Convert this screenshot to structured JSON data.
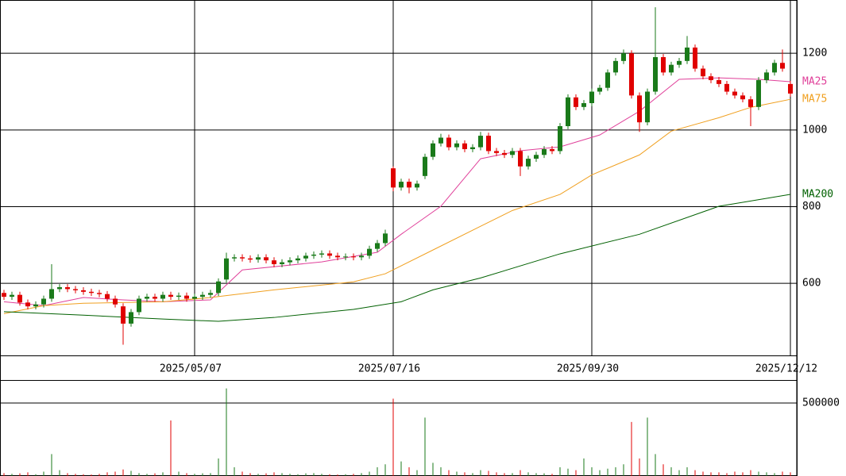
{
  "chart_data": [
    {
      "type": "candlestick",
      "categories": [
        null,
        null,
        null,
        null,
        null,
        null,
        null,
        null,
        null,
        null,
        null,
        null,
        null,
        null,
        null,
        null,
        null,
        null,
        null,
        null,
        null,
        null,
        null,
        null,
        "2025/05/07",
        null,
        null,
        null,
        null,
        null,
        null,
        null,
        null,
        null,
        null,
        null,
        null,
        null,
        null,
        null,
        null,
        null,
        null,
        null,
        null,
        null,
        null,
        null,
        null,
        "2025/07/16",
        null,
        null,
        null,
        null,
        null,
        null,
        null,
        null,
        null,
        null,
        null,
        null,
        null,
        null,
        null,
        null,
        null,
        null,
        null,
        null,
        null,
        null,
        null,
        null,
        "2025/09/30",
        null,
        null,
        null,
        null,
        null,
        null,
        null,
        null,
        null,
        null,
        null,
        null,
        null,
        null,
        null,
        null,
        null,
        null,
        null,
        null,
        null,
        null,
        null,
        null,
        "2025/12/12"
      ],
      "open": [
        575,
        565,
        570,
        550,
        540,
        545,
        560,
        585,
        590,
        585,
        582,
        578,
        575,
        572,
        560,
        540,
        495,
        525,
        560,
        565,
        560,
        570,
        565,
        568,
        560,
        565,
        570,
        575,
        610,
        665,
        668,
        665,
        662,
        668,
        660,
        650,
        655,
        660,
        665,
        672,
        675,
        678,
        672,
        668,
        670,
        668,
        672,
        690,
        705,
        900,
        850,
        865,
        850,
        880,
        930,
        965,
        980,
        955,
        965,
        950,
        955,
        985,
        945,
        940,
        935,
        945,
        905,
        925,
        935,
        950,
        945,
        1010,
        1085,
        1060,
        1070,
        1100,
        1110,
        1150,
        1180,
        1200,
        1090,
        1020,
        1100,
        1190,
        1150,
        1170,
        1180,
        1215,
        1160,
        1140,
        1130,
        1120,
        1100,
        1090,
        1080,
        1060,
        1130,
        1150,
        1175,
        1120
      ],
      "high": [
        583,
        578,
        578,
        558,
        553,
        568,
        650,
        598,
        598,
        593,
        590,
        586,
        583,
        580,
        568,
        548,
        533,
        568,
        573,
        573,
        578,
        578,
        576,
        576,
        573,
        578,
        583,
        613,
        680,
        676,
        676,
        673,
        676,
        676,
        668,
        663,
        668,
        673,
        680,
        683,
        686,
        686,
        680,
        678,
        678,
        680,
        698,
        713,
        740,
        905,
        873,
        873,
        868,
        938,
        973,
        990,
        988,
        973,
        973,
        963,
        995,
        993,
        953,
        948,
        953,
        953,
        933,
        943,
        958,
        958,
        1018,
        1093,
        1093,
        1078,
        1108,
        1118,
        1158,
        1188,
        1210,
        1208,
        1098,
        1108,
        1320,
        1198,
        1178,
        1188,
        1245,
        1223,
        1168,
        1148,
        1138,
        1128,
        1108,
        1098,
        1088,
        1138,
        1158,
        1183,
        1210,
        1128
      ],
      "low": [
        557,
        557,
        542,
        532,
        532,
        537,
        552,
        577,
        577,
        574,
        570,
        567,
        564,
        552,
        537,
        440,
        487,
        517,
        552,
        552,
        552,
        557,
        557,
        552,
        552,
        557,
        562,
        567,
        602,
        657,
        657,
        654,
        654,
        652,
        642,
        642,
        647,
        652,
        657,
        664,
        667,
        664,
        660,
        660,
        660,
        660,
        664,
        682,
        697,
        840,
        842,
        835,
        842,
        872,
        922,
        957,
        947,
        947,
        942,
        942,
        947,
        937,
        932,
        927,
        927,
        880,
        897,
        917,
        927,
        937,
        937,
        1002,
        1052,
        1052,
        1062,
        1092,
        1102,
        1142,
        1172,
        1082,
        995,
        1012,
        1092,
        1142,
        1142,
        1162,
        1172,
        1152,
        1132,
        1122,
        1112,
        1092,
        1082,
        1072,
        1010,
        1052,
        1122,
        1142,
        1152,
        1087
      ],
      "close": [
        565,
        570,
        550,
        540,
        545,
        560,
        585,
        590,
        585,
        582,
        578,
        575,
        572,
        560,
        545,
        495,
        525,
        560,
        565,
        560,
        570,
        565,
        568,
        560,
        565,
        570,
        575,
        605,
        665,
        668,
        665,
        662,
        668,
        660,
        650,
        655,
        660,
        665,
        672,
        675,
        678,
        672,
        668,
        670,
        668,
        672,
        690,
        705,
        730,
        850,
        865,
        850,
        860,
        930,
        965,
        980,
        955,
        965,
        950,
        955,
        985,
        945,
        940,
        935,
        945,
        905,
        925,
        935,
        950,
        945,
        1010,
        1085,
        1060,
        1070,
        1100,
        1110,
        1150,
        1180,
        1200,
        1090,
        1020,
        1100,
        1190,
        1150,
        1170,
        1180,
        1215,
        1160,
        1140,
        1130,
        1120,
        1100,
        1090,
        1080,
        1060,
        1130,
        1150,
        1175,
        1160,
        1095
      ],
      "up_color": "#1a7a1a",
      "down_color": "#e00000",
      "series": [
        {
          "name": "MA25",
          "color": "#e0409a",
          "x": [
            0,
            5,
            10,
            15,
            20,
            26,
            30,
            40,
            47,
            50,
            55,
            60,
            65,
            70,
            75,
            80,
            85,
            90,
            95,
            99
          ],
          "values": [
            552,
            542,
            563,
            557,
            552,
            557,
            635,
            656,
            681,
            728,
            801,
            925,
            946,
            956,
            987,
            1049,
            1132,
            1136,
            1132,
            1126
          ]
        },
        {
          "name": "MA75",
          "color": "#f0a020",
          "x": [
            0,
            5,
            10,
            20,
            26,
            34,
            44,
            48,
            54,
            60,
            64,
            70,
            74,
            80,
            84,
            90,
            94,
            99
          ],
          "values": [
            521,
            542,
            548,
            552,
            563,
            583,
            604,
            625,
            687,
            749,
            790,
            832,
            883,
            935,
            997,
            1032,
            1059,
            1080
          ]
        },
        {
          "name": "MA200",
          "color": "#006000",
          "x": [
            0,
            10,
            20,
            27,
            34,
            44,
            50,
            54,
            60,
            70,
            80,
            90,
            99
          ],
          "values": [
            526,
            517,
            507,
            501,
            511,
            532,
            552,
            583,
            614,
            677,
            728,
            801,
            832
          ]
        }
      ],
      "ylim": [
        410,
        1339
      ],
      "yticks": [
        600,
        800,
        1000,
        1200
      ],
      "grid": true
    },
    {
      "type": "bar",
      "values": [
        20000,
        15000,
        18000,
        25000,
        12000,
        30000,
        150000,
        40000,
        20000,
        15000,
        12000,
        10000,
        15000,
        25000,
        30000,
        45000,
        35000,
        20000,
        15000,
        18000,
        25000,
        380000,
        30000,
        20000,
        15000,
        18000,
        20000,
        120000,
        600000,
        60000,
        30000,
        20000,
        15000,
        18000,
        25000,
        20000,
        15000,
        12000,
        18000,
        20000,
        15000,
        12000,
        10000,
        12000,
        15000,
        20000,
        30000,
        60000,
        80000,
        530000,
        100000,
        60000,
        40000,
        400000,
        90000,
        60000,
        40000,
        30000,
        25000,
        20000,
        40000,
        35000,
        25000,
        20000,
        20000,
        40000,
        25000,
        20000,
        18000,
        15000,
        60000,
        50000,
        40000,
        120000,
        60000,
        40000,
        50000,
        60000,
        80000,
        370000,
        120000,
        400000,
        150000,
        80000,
        60000,
        40000,
        60000,
        40000,
        30000,
        25000,
        25000,
        20000,
        30000,
        25000,
        40000,
        30000,
        25000,
        20000,
        30000,
        25000
      ],
      "ylim": [
        0,
        652000
      ],
      "yticks": [
        500000
      ],
      "grid": true
    }
  ]
}
